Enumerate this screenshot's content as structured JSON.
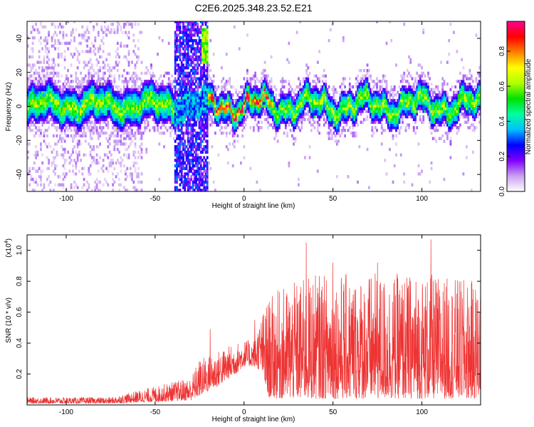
{
  "chart_data": [
    {
      "type": "heatmap",
      "title": "C2E6.2025.348.23.52.E21",
      "xlabel": "Height of straight line (km)",
      "ylabel": "Frequency (Hz)",
      "xlim": [
        -122,
        133
      ],
      "ylim": [
        -50,
        50
      ],
      "x_ticks": [
        -100,
        -50,
        0,
        50,
        100
      ],
      "y_ticks": [
        -40,
        -20,
        0,
        20,
        40
      ],
      "grid": false,
      "colorbar": {
        "label": "Normalized spectral amplitude",
        "range": [
          0,
          0.97
        ],
        "ticks": [
          0.0,
          0.2,
          0.4,
          0.6,
          0.8
        ],
        "colormap": [
          "#ffffff",
          "#c8a0f0",
          "#8000ff",
          "#0000ff",
          "#00c0ff",
          "#00ffa0",
          "#00e000",
          "#b0ff00",
          "#ffff00",
          "#ff8000",
          "#ff0000",
          "#ff0090"
        ]
      },
      "features": {
        "dense_band_center_hz": 0,
        "dense_band_halfwidth_hz": 10,
        "vertical_stripe_km": [
          -40,
          -21
        ],
        "sparse_scatter_km": [
          -122,
          -58
        ],
        "signal_onset_km": -21
      }
    },
    {
      "type": "line",
      "xlabel": "Height of straight line (km)",
      "ylabel": "SNR (10 * v/v)",
      "y_multiplier": "(x10",
      "y_multiplier_exp": "4",
      "xlim": [
        -122,
        133
      ],
      "ylim": [
        0,
        1.1
      ],
      "x_ticks": [
        -100,
        -50,
        0,
        50,
        100
      ],
      "y_ticks": [
        0.2,
        0.4,
        0.6,
        0.8,
        1.0
      ],
      "series": [
        {
          "color": "#ee3333",
          "envelope_km": [
            -122,
            -75,
            -50,
            -30,
            -25,
            -15,
            -5,
            0,
            5,
            10,
            13,
            20,
            40,
            60,
            80,
            100,
            133
          ],
          "envelope_peak": [
            0.05,
            0.05,
            0.12,
            0.18,
            0.3,
            0.35,
            0.4,
            0.42,
            0.42,
            0.58,
            0.68,
            0.75,
            0.85,
            0.85,
            0.85,
            0.85,
            0.8
          ],
          "envelope_base": [
            0.01,
            0.01,
            0.02,
            0.03,
            0.06,
            0.12,
            0.2,
            0.25,
            0.25,
            0.22,
            0.05,
            0.04,
            0.04,
            0.04,
            0.04,
            0.04,
            0.04
          ],
          "spikes": [
            {
              "x": 35,
              "y": 1.05
            },
            {
              "x": 105,
              "y": 1.07
            },
            {
              "x": 50,
              "y": 0.92
            },
            {
              "x": 75,
              "y": 0.92
            },
            {
              "x": -19,
              "y": 0.49
            },
            {
              "x": 6,
              "y": 0.55
            }
          ]
        }
      ]
    }
  ]
}
